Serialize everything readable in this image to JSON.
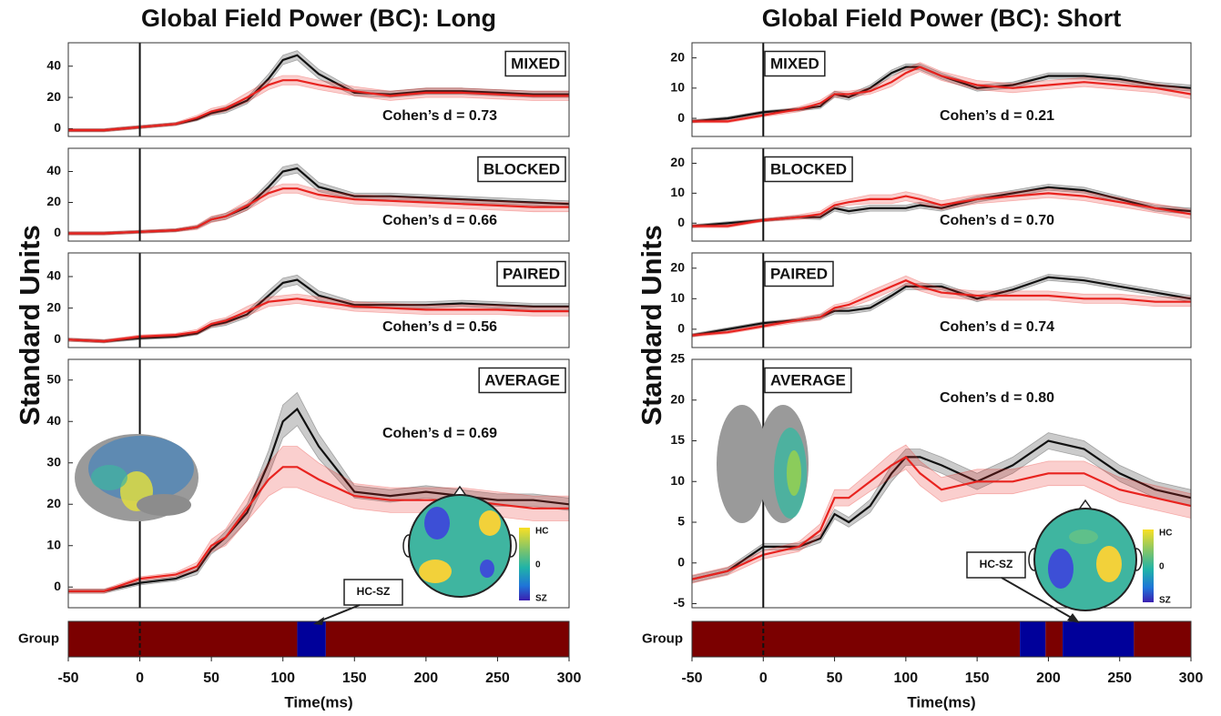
{
  "chart_data": [
    {
      "type": "line",
      "title": "Global Field Power (BC): Long",
      "ylabel": "Standard Units",
      "label": "MIXED",
      "annotation": "Cohen’s d = 0.73",
      "x": [
        -50,
        -25,
        0,
        25,
        40,
        50,
        60,
        75,
        90,
        100,
        110,
        125,
        150,
        175,
        200,
        225,
        250,
        275,
        300
      ],
      "xlim": [
        -50,
        300
      ],
      "ylim": [
        -5,
        55
      ],
      "yticks": [
        0,
        20,
        40
      ],
      "vline": 0,
      "series": [
        {
          "color": "#111111",
          "values": [
            -1,
            -1,
            1,
            3,
            6,
            10,
            12,
            18,
            32,
            44,
            47,
            35,
            23,
            22,
            24,
            24,
            23,
            22,
            22
          ],
          "errors": [
            1,
            1,
            1,
            1,
            1,
            1.5,
            2,
            2,
            3,
            3,
            3,
            3,
            2,
            2,
            2,
            2,
            2,
            2,
            2
          ]
        },
        {
          "color": "#e8231f",
          "values": [
            -1,
            -1,
            1,
            3,
            7,
            11,
            13,
            20,
            28,
            31,
            31,
            28,
            24,
            21,
            23,
            23,
            22,
            21,
            21
          ],
          "errors": [
            1,
            1,
            1,
            1,
            1.5,
            2,
            2,
            3,
            3,
            3,
            3,
            3,
            3,
            3,
            3,
            3,
            3,
            3,
            3
          ]
        }
      ]
    },
    {
      "type": "line",
      "label": "BLOCKED",
      "annotation": "Cohen’s d = 0.66",
      "x": [
        -50,
        -25,
        0,
        25,
        40,
        50,
        60,
        75,
        90,
        100,
        110,
        125,
        150,
        175,
        200,
        225,
        250,
        275,
        300
      ],
      "xlim": [
        -50,
        300
      ],
      "ylim": [
        -5,
        55
      ],
      "yticks": [
        0,
        20,
        40
      ],
      "vline": 0,
      "series": [
        {
          "color": "#111111",
          "values": [
            0,
            0,
            1,
            2,
            4,
            9,
            11,
            17,
            30,
            40,
            42,
            30,
            24,
            24,
            23,
            22,
            21,
            20,
            19
          ],
          "errors": [
            1,
            1,
            1,
            1,
            1,
            1.5,
            2,
            2,
            3,
            3,
            3,
            3,
            2,
            2,
            2,
            2,
            2,
            2,
            2
          ]
        },
        {
          "color": "#e8231f",
          "values": [
            0,
            0,
            1,
            2,
            4,
            9,
            11,
            18,
            26,
            29,
            29,
            25,
            22,
            21,
            20,
            19,
            18,
            17,
            17
          ],
          "errors": [
            1,
            1,
            1,
            1,
            1.5,
            2,
            2,
            3,
            3,
            3,
            3,
            3,
            3,
            3,
            3,
            3,
            3,
            3,
            3
          ]
        }
      ]
    },
    {
      "type": "line",
      "label": "PAIRED",
      "annotation": "Cohen’s d = 0.56",
      "x": [
        -50,
        -25,
        0,
        25,
        40,
        50,
        60,
        75,
        90,
        100,
        110,
        125,
        150,
        175,
        200,
        225,
        250,
        275,
        300
      ],
      "xlim": [
        -50,
        300
      ],
      "ylim": [
        -5,
        55
      ],
      "yticks": [
        0,
        20,
        40
      ],
      "vline": 0,
      "series": [
        {
          "color": "#111111",
          "values": [
            0,
            -1,
            1,
            2,
            4,
            9,
            11,
            16,
            28,
            36,
            38,
            28,
            22,
            22,
            22,
            23,
            22,
            21,
            21
          ],
          "errors": [
            1,
            1,
            1,
            1,
            1,
            1.5,
            2,
            2,
            3,
            3,
            3,
            3,
            2,
            2,
            2,
            2,
            2,
            2,
            2
          ]
        },
        {
          "color": "#e8231f",
          "values": [
            0,
            -1,
            2,
            3,
            5,
            10,
            12,
            18,
            24,
            25,
            26,
            24,
            21,
            20,
            19,
            19,
            19,
            18,
            18
          ],
          "errors": [
            1,
            1,
            1,
            1,
            1.5,
            2,
            2,
            3,
            3,
            3,
            3,
            3,
            3,
            3,
            3,
            3,
            3,
            3,
            3
          ]
        }
      ]
    },
    {
      "type": "line",
      "label": "AVERAGE",
      "annotation": "Cohen’s d = 0.69",
      "effect_label": "HC-SZ",
      "colorbar_labels": [
        "HC",
        "0",
        "SZ"
      ],
      "x": [
        -50,
        -25,
        0,
        25,
        40,
        50,
        60,
        75,
        90,
        100,
        110,
        125,
        150,
        175,
        200,
        225,
        250,
        275,
        300
      ],
      "xlim": [
        -50,
        300
      ],
      "ylim": [
        -5,
        55
      ],
      "yticks": [
        0,
        10,
        20,
        30,
        40,
        50
      ],
      "vline": 0,
      "series": [
        {
          "color": "#111111",
          "values": [
            -1,
            -1,
            1,
            2,
            4,
            9,
            12,
            18,
            30,
            40,
            43,
            34,
            23,
            22,
            23,
            22,
            21,
            21,
            20
          ],
          "errors": [
            0.5,
            0.5,
            0.5,
            0.5,
            1,
            1,
            1.5,
            2,
            3,
            4,
            4,
            3,
            1.5,
            1.5,
            1.5,
            1.5,
            1.5,
            1.5,
            1.5
          ]
        },
        {
          "color": "#e8231f",
          "values": [
            -1,
            -1,
            2,
            3,
            5,
            10,
            12,
            19,
            26,
            29,
            29,
            26,
            22,
            21,
            21,
            21,
            20,
            19,
            19
          ],
          "errors": [
            0.5,
            0.5,
            0.5,
            0.5,
            1,
            1.5,
            2,
            3,
            4,
            5,
            5,
            4,
            3,
            3,
            3,
            3,
            3,
            3,
            3
          ]
        }
      ]
    },
    {
      "type": "timeline",
      "ylabel": "Group",
      "xlabel": "Time(ms)",
      "xlim": [
        -50,
        300
      ],
      "xticks": [
        -50,
        0,
        50,
        100,
        150,
        200,
        250,
        300
      ],
      "vline": 0,
      "segments": [
        {
          "start": -50,
          "end": 110,
          "color": "#7b0000"
        },
        {
          "start": 110,
          "end": 130,
          "color": "#00009a"
        },
        {
          "start": 130,
          "end": 300,
          "color": "#7b0000"
        }
      ]
    },
    {
      "type": "line",
      "title": "Global Field Power (BC): Short",
      "ylabel": "Standard Units",
      "label": "MIXED",
      "annotation": "Cohen’s d = 0.21",
      "x": [
        -50,
        -25,
        0,
        25,
        40,
        50,
        60,
        75,
        90,
        100,
        110,
        125,
        150,
        175,
        200,
        225,
        250,
        275,
        300
      ],
      "xlim": [
        -50,
        300
      ],
      "ylim": [
        -6,
        25
      ],
      "yticks": [
        0,
        10,
        20
      ],
      "vline": 0,
      "series": [
        {
          "color": "#111111",
          "values": [
            -1,
            0,
            2,
            3,
            4,
            8,
            7,
            10,
            15,
            17,
            17,
            14,
            10,
            11,
            14,
            14,
            13,
            11,
            10
          ],
          "errors": [
            0.5,
            0.5,
            0.5,
            0.5,
            0.8,
            1,
            1,
            1,
            1,
            1,
            1,
            1,
            1,
            1,
            1,
            1,
            1,
            1,
            1
          ]
        },
        {
          "color": "#e8231f",
          "values": [
            -1,
            -1,
            1,
            3,
            5,
            8,
            8,
            9,
            12,
            15,
            17,
            14,
            11,
            10,
            11,
            12,
            11,
            10,
            8
          ],
          "errors": [
            0.5,
            0.5,
            0.5,
            0.8,
            1,
            1,
            1,
            1,
            1.5,
            1.5,
            1.5,
            1.5,
            1.5,
            1.5,
            1.5,
            1.5,
            1.5,
            1.5,
            1.5
          ]
        }
      ]
    },
    {
      "type": "line",
      "label": "BLOCKED",
      "annotation": "Cohen’s d = 0.70",
      "x": [
        -50,
        -25,
        0,
        25,
        40,
        50,
        60,
        75,
        90,
        100,
        110,
        125,
        150,
        175,
        200,
        225,
        250,
        275,
        300
      ],
      "xlim": [
        -50,
        300
      ],
      "ylim": [
        -6,
        25
      ],
      "yticks": [
        0,
        10,
        20
      ],
      "vline": 0,
      "series": [
        {
          "color": "#111111",
          "values": [
            -1,
            0,
            1,
            2,
            2,
            5,
            4,
            5,
            5,
            5,
            6,
            5,
            8,
            10,
            12,
            11,
            8,
            5,
            4
          ],
          "errors": [
            0.5,
            0.5,
            0.5,
            0.5,
            0.8,
            1,
            1,
            1,
            1,
            1,
            1,
            1,
            1,
            1,
            1,
            1,
            1,
            1,
            1
          ]
        },
        {
          "color": "#e8231f",
          "values": [
            -1,
            -1,
            1,
            2,
            3,
            6,
            7,
            8,
            8,
            9,
            8,
            6,
            8,
            9,
            10,
            9,
            7,
            5,
            3
          ],
          "errors": [
            0.5,
            0.5,
            0.5,
            0.8,
            1,
            1,
            1,
            1.5,
            1.5,
            1.5,
            1.5,
            1.5,
            1.5,
            1.5,
            1.5,
            1.5,
            1.5,
            1.5,
            1.5
          ]
        }
      ]
    },
    {
      "type": "line",
      "label": "PAIRED",
      "annotation": "Cohen’s d = 0.74",
      "x": [
        -50,
        -25,
        0,
        25,
        40,
        50,
        60,
        75,
        90,
        100,
        110,
        125,
        150,
        175,
        200,
        225,
        250,
        275,
        300
      ],
      "xlim": [
        -50,
        300
      ],
      "ylim": [
        -6,
        25
      ],
      "yticks": [
        0,
        10,
        20
      ],
      "vline": 0,
      "series": [
        {
          "color": "#111111",
          "values": [
            -2,
            0,
            2,
            3,
            4,
            6,
            6,
            7,
            11,
            14,
            14,
            14,
            10,
            13,
            17,
            16,
            14,
            12,
            10
          ],
          "errors": [
            0.5,
            0.5,
            0.5,
            0.5,
            0.8,
            1,
            1,
            1,
            1,
            1,
            1,
            1,
            1,
            1,
            1,
            1,
            1,
            1,
            1
          ]
        },
        {
          "color": "#e8231f",
          "values": [
            -2,
            -1,
            1,
            3,
            4,
            7,
            8,
            11,
            14,
            16,
            14,
            12,
            11,
            11,
            11,
            10,
            10,
            9,
            9
          ],
          "errors": [
            0.5,
            0.5,
            0.5,
            0.8,
            1,
            1,
            1,
            1.5,
            1.5,
            1.5,
            1.5,
            1.5,
            1.5,
            1.5,
            1.5,
            1.5,
            1.5,
            1.5,
            1.5
          ]
        }
      ]
    },
    {
      "type": "line",
      "label": "AVERAGE",
      "annotation": "Cohen’s d = 0.80",
      "effect_label": "HC-SZ",
      "colorbar_labels": [
        "HC",
        "0",
        "SZ"
      ],
      "x": [
        -50,
        -25,
        0,
        25,
        40,
        50,
        60,
        75,
        90,
        100,
        110,
        125,
        150,
        175,
        200,
        225,
        250,
        275,
        300
      ],
      "xlim": [
        -50,
        300
      ],
      "ylim": [
        -5.5,
        25
      ],
      "yticks": [
        -5,
        0,
        5,
        10,
        15,
        20,
        25
      ],
      "vline": 0,
      "series": [
        {
          "color": "#111111",
          "values": [
            -2,
            -1,
            2,
            2,
            3,
            6,
            5,
            7,
            11,
            13,
            13,
            12,
            10,
            12,
            15,
            14,
            11,
            9,
            8
          ],
          "errors": [
            0.4,
            0.4,
            0.4,
            0.4,
            0.5,
            0.6,
            0.6,
            0.8,
            1,
            1,
            1,
            1,
            1,
            1,
            1,
            1,
            1,
            1,
            1
          ]
        },
        {
          "color": "#e8231f",
          "values": [
            -2,
            -1,
            1,
            2,
            4,
            8,
            8,
            10,
            12,
            13,
            11,
            9,
            10,
            10,
            11,
            11,
            9,
            8,
            7
          ],
          "errors": [
            0.5,
            0.5,
            0.5,
            0.6,
            0.8,
            1,
            1,
            1.2,
            1.5,
            1.5,
            1.5,
            1.5,
            1.5,
            1.5,
            1.5,
            1.5,
            1.5,
            1.5,
            1.5
          ]
        }
      ]
    },
    {
      "type": "timeline",
      "ylabel": "Group",
      "xlabel": "Time(ms)",
      "xlim": [
        -50,
        300
      ],
      "xticks": [
        -50,
        0,
        50,
        100,
        150,
        200,
        250,
        300
      ],
      "vline": 0,
      "segments": [
        {
          "start": -50,
          "end": 180,
          "color": "#7b0000"
        },
        {
          "start": 180,
          "end": 198,
          "color": "#00009a"
        },
        {
          "start": 198,
          "end": 210,
          "color": "#7b0000"
        },
        {
          "start": 210,
          "end": 260,
          "color": "#00009a"
        },
        {
          "start": 260,
          "end": 300,
          "color": "#7b0000"
        }
      ]
    }
  ]
}
